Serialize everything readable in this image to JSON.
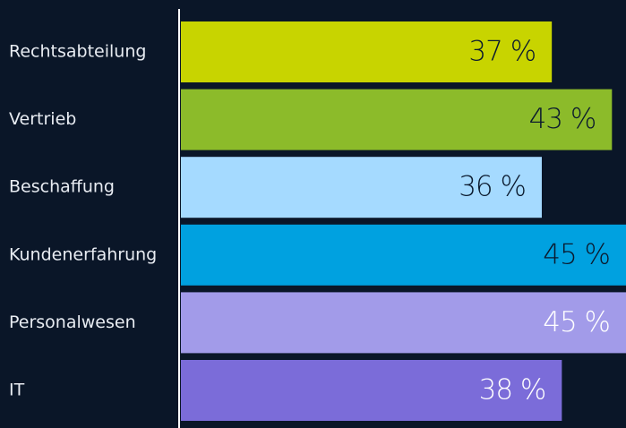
{
  "chart_data": {
    "type": "bar",
    "orientation": "horizontal",
    "categories": [
      "Rechtsabteilung",
      "Vertrieb",
      "Beschaffung",
      "Kundenerfahrung",
      "Personalwesen",
      "IT"
    ],
    "values": [
      37,
      43,
      36,
      45,
      45,
      38
    ],
    "value_labels": [
      "37 %",
      "43 %",
      "36 %",
      "45 %",
      "45 %",
      "38 %"
    ],
    "colors": [
      "#c8d400",
      "#8cbb2a",
      "#a5daff",
      "#00a1e0",
      "#a29be9",
      "#7b6cd9"
    ],
    "label_colors": [
      "#0b1a2e",
      "#0b1a2e",
      "#0b1a2e",
      "#0b1a2e",
      "#ffffff",
      "#ffffff"
    ],
    "xlim": [
      0,
      44.4
    ]
  }
}
